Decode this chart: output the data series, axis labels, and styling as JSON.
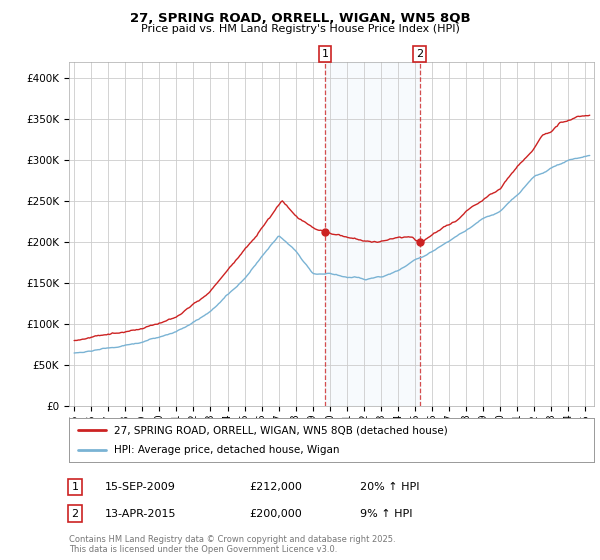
{
  "title1": "27, SPRING ROAD, ORRELL, WIGAN, WN5 8QB",
  "title2": "Price paid vs. HM Land Registry's House Price Index (HPI)",
  "ylabel_ticks": [
    "£0",
    "£50K",
    "£100K",
    "£150K",
    "£200K",
    "£250K",
    "£300K",
    "£350K",
    "£400K"
  ],
  "ytick_vals": [
    0,
    50000,
    100000,
    150000,
    200000,
    250000,
    300000,
    350000,
    400000
  ],
  "ylim": [
    0,
    420000
  ],
  "xlim_start": 1994.7,
  "xlim_end": 2025.5,
  "xtick_years": [
    1995,
    1996,
    1997,
    1998,
    1999,
    2000,
    2001,
    2002,
    2003,
    2004,
    2005,
    2006,
    2007,
    2008,
    2009,
    2010,
    2011,
    2012,
    2013,
    2014,
    2015,
    2016,
    2017,
    2018,
    2019,
    2020,
    2021,
    2022,
    2023,
    2024,
    2025
  ],
  "hpi_color": "#7ab3d4",
  "price_color": "#cc2222",
  "marker1_x": 2009.71,
  "marker1_y": 212000,
  "marker2_x": 2015.28,
  "marker2_y": 200000,
  "vline1_x": 2009.71,
  "vline2_x": 2015.28,
  "shade_xmin": 2009.71,
  "shade_xmax": 2015.28,
  "legend_label_price": "27, SPRING ROAD, ORRELL, WIGAN, WN5 8QB (detached house)",
  "legend_label_hpi": "HPI: Average price, detached house, Wigan",
  "table_rows": [
    {
      "num": "1",
      "date": "15-SEP-2009",
      "price": "£212,000",
      "hpi": "20% ↑ HPI"
    },
    {
      "num": "2",
      "date": "13-APR-2015",
      "price": "£200,000",
      "hpi": "9% ↑ HPI"
    }
  ],
  "footnote": "Contains HM Land Registry data © Crown copyright and database right 2025.\nThis data is licensed under the Open Government Licence v3.0.",
  "bg_color": "#ffffff",
  "plot_bg_color": "#ffffff",
  "grid_color": "#cccccc"
}
